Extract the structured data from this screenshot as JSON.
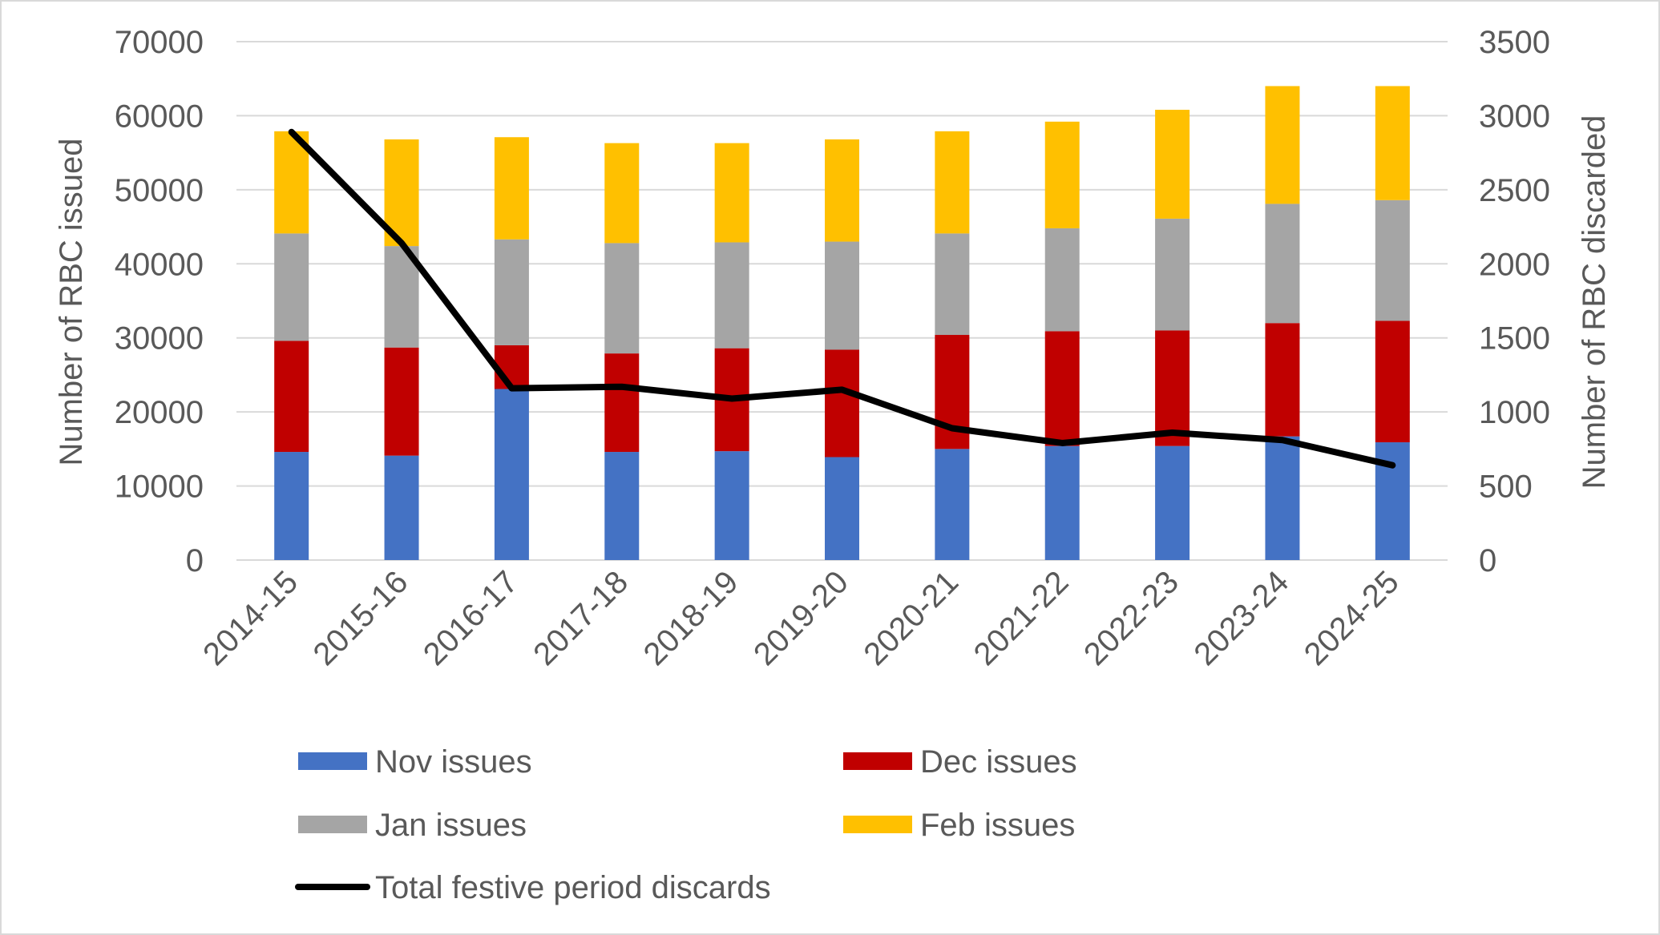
{
  "chart_data": {
    "type": "bar",
    "stacked": true,
    "categories": [
      "2014-15",
      "2015-16",
      "2016-17",
      "2017-18",
      "2018-19",
      "2019-20",
      "2020-21",
      "2021-22",
      "2022-23",
      "2023-24",
      "2024-25"
    ],
    "series": [
      {
        "name": "Nov issues",
        "color": "#4472C4",
        "axis": "left",
        "type": "bar",
        "values": [
          14600,
          14100,
          23100,
          14600,
          14700,
          13900,
          15000,
          15400,
          15400,
          16700,
          15900
        ]
      },
      {
        "name": "Dec issues",
        "color": "#C00000",
        "axis": "left",
        "type": "bar",
        "values": [
          15000,
          14600,
          5900,
          13300,
          13900,
          14500,
          15400,
          15500,
          15600,
          15300,
          16400
        ]
      },
      {
        "name": "Jan issues",
        "color": "#A5A5A5",
        "axis": "left",
        "type": "bar",
        "values": [
          14500,
          13700,
          14300,
          14900,
          14300,
          14600,
          13700,
          13900,
          15100,
          16100,
          16300
        ]
      },
      {
        "name": "Feb issues",
        "color": "#FFC000",
        "axis": "left",
        "type": "bar",
        "values": [
          13800,
          14400,
          13800,
          13500,
          13400,
          13800,
          13800,
          14400,
          14700,
          15900,
          15400
        ]
      },
      {
        "name": "Total festive period discards",
        "color": "#000000",
        "axis": "right",
        "type": "line",
        "values": [
          2890,
          2140,
          1160,
          1170,
          1090,
          1150,
          890,
          790,
          860,
          810,
          640
        ]
      }
    ],
    "ylabel": "Number of RBC issued",
    "y2label": "Number of RBC discarded",
    "ylim": [
      0,
      70000
    ],
    "y2lim": [
      0,
      3500
    ],
    "yticks": [
      "0",
      "10000",
      "20000",
      "30000",
      "40000",
      "50000",
      "60000",
      "70000"
    ],
    "y2ticks": [
      "0",
      "500",
      "1000",
      "1500",
      "2000",
      "2500",
      "3000",
      "3500"
    ],
    "grid": true,
    "legend": "bottom"
  }
}
